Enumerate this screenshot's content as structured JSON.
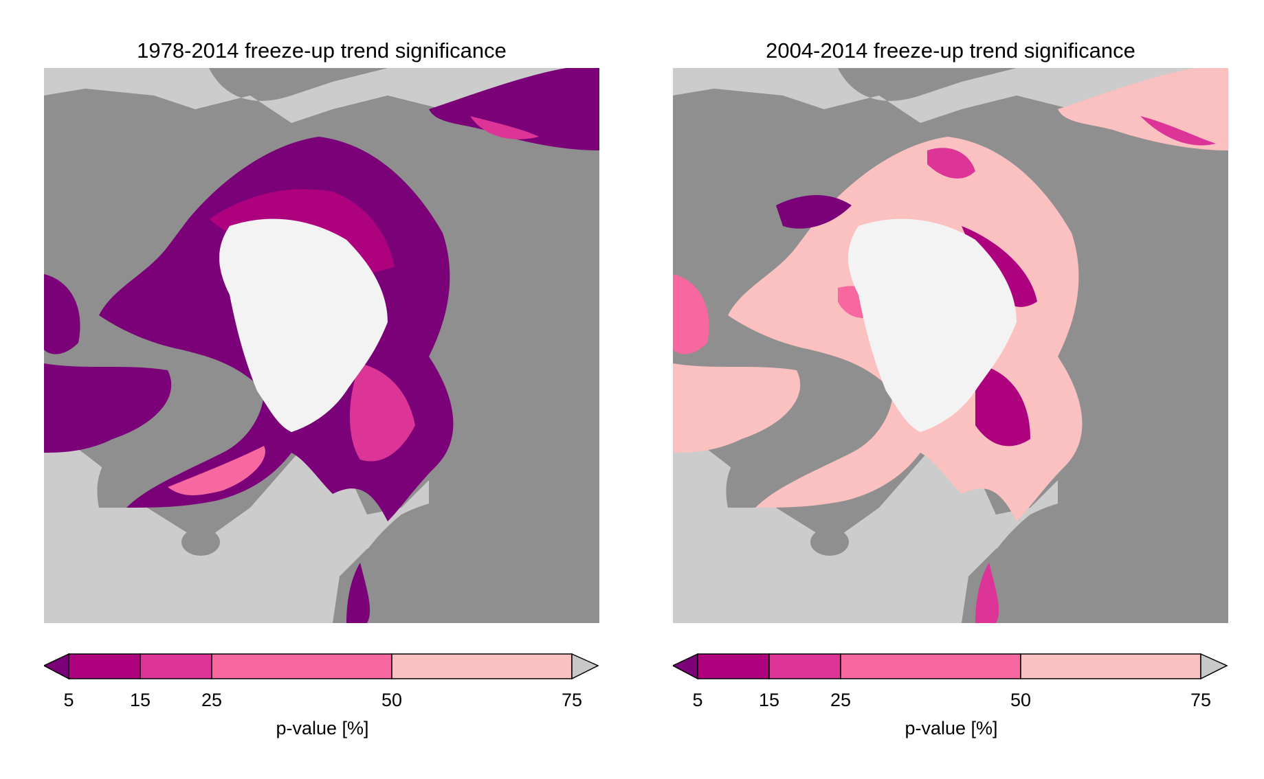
{
  "colors": {
    "land": "#8f8f8f",
    "ocean": "#cccccc",
    "pole": "#f3f3f3",
    "lake": "#c8c8c8",
    "p5": "#7a0177",
    "p15": "#ae017e",
    "p25": "#dd3497",
    "p50": "#f768a1",
    "p75": "#fbc1c0",
    "above75": "#c8c8c8"
  },
  "panels": [
    {
      "title": "1978-2014 freeze-up trend significance",
      "dominant_class": "p5",
      "colorbar": {
        "ticks": [
          "5",
          "15",
          "25",
          "50",
          "75"
        ],
        "label": "p-value [%]"
      }
    },
    {
      "title": "2004-2014 freeze-up trend significance",
      "dominant_class": "p75",
      "colorbar": {
        "ticks": [
          "5",
          "15",
          "25",
          "50",
          "75"
        ],
        "label": "p-value [%]"
      }
    }
  ]
}
